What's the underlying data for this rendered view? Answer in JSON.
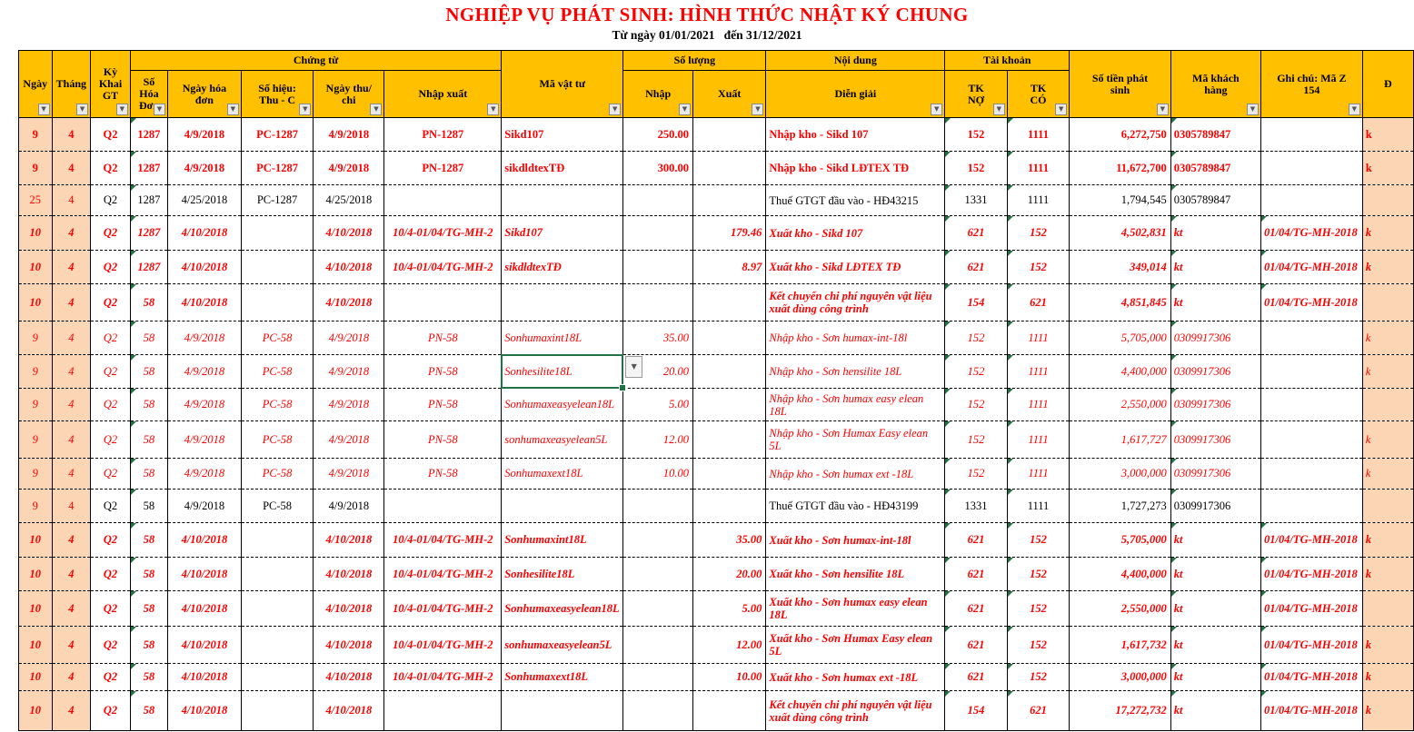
{
  "title": "NGHIỆP VỤ PHÁT SINH: HÌNH THỨC NHẬT KÝ CHUNG",
  "subtitle": "Từ ngày 01/01/2021   đến 31/12/2021",
  "icons": {
    "filter_dropdown": "▼",
    "validation_dropdown": "▼"
  },
  "colors": {
    "header_bg": "#FFC000",
    "stripe_bg": "#FCD5B4",
    "text_red": "#FF0000",
    "selection_green": "#217346"
  },
  "table": {
    "groups": {
      "chung_tu": "Chứng từ",
      "so_luong": "Số lượng",
      "noi_dung": "Nội dung",
      "tai_khoan": "Tài khoản"
    },
    "columns": {
      "ngay": "Ngày",
      "thang": "Tháng",
      "ky": "Kỳ\nKhai\nGT",
      "so_hd": "Số\nHóa\nĐơn",
      "ngay_hd": "Ngày hóa\nđơn",
      "so_hieu": "Số hiệu:\nThu - C",
      "ngay_tc": "Ngày thu/\nchi",
      "nhap_xuat": "Nhập xuất",
      "ma_vt": "Mã vật tư",
      "nhap": "Nhập",
      "xuat": "Xuất",
      "dien_giai": "Diễn giải",
      "tk_no": "TK\nNỢ",
      "tk_co": "TK\nCÓ",
      "so_tien": "Số tiền phát\nsinh",
      "ma_kh": "Mã khách\nhàng",
      "ghi_chu": "Ghi chú:  Mã Z\n154",
      "d": "Đ"
    },
    "rows": [
      {
        "style": "br",
        "ngay": "9",
        "thang": "4",
        "ky": "Q2",
        "so_hd": "1287",
        "ngay_hd": "4/9/2018",
        "so_hieu": "PC-1287",
        "ngay_tc": "4/9/2018",
        "nhap_xuat": "PN-1287",
        "ma_vt": "Sikd107",
        "nhap": "250.00",
        "dien_giai": "Nhập kho - Sikd 107",
        "tk_no": "152",
        "tk_co": "1111",
        "so_tien": "6,272,750",
        "ma_kh": "0305789847",
        "d": "k"
      },
      {
        "style": "br",
        "ngay": "9",
        "thang": "4",
        "ky": "Q2",
        "so_hd": "1287",
        "ngay_hd": "4/9/2018",
        "so_hieu": "PC-1287",
        "ngay_tc": "4/9/2018",
        "nhap_xuat": "PN-1287",
        "ma_vt": "sikdldtexTĐ",
        "nhap": "300.00",
        "dien_giai": "Nhập kho - Sikd LĐTEX TĐ",
        "tk_no": "152",
        "tk_co": "1111",
        "so_tien": "11,672,700",
        "ma_kh": "0305789847",
        "d": "k"
      },
      {
        "style": "k",
        "ngay": "25",
        "thang": "4",
        "ky": "Q2",
        "so_hd": "1287",
        "ngay_hd": "4/25/2018",
        "so_hieu": "PC-1287",
        "ngay_tc": "4/25/2018",
        "dien_giai": "Thuế GTGT đầu vào - HĐ43215",
        "tk_no": "1331",
        "tk_co": "1111",
        "so_tien": "1,794,545",
        "ma_kh": "0305789847"
      },
      {
        "style": "bri",
        "ngay": "10",
        "thang": "4",
        "ky": "Q2",
        "so_hd": "1287",
        "ngay_hd": "4/10/2018",
        "ngay_tc": "4/10/2018",
        "nhap_xuat": "10/4-01/04/TG-MH-2",
        "ma_vt": "Sikd107",
        "xuat": "179.46",
        "dien_giai": "Xuất kho - Sikd 107",
        "tk_no": "621",
        "tk_co": "152",
        "so_tien": "4,502,831",
        "ma_kh": "kt",
        "ghi_chu": "01/04/TG-MH-2018",
        "d": "k"
      },
      {
        "style": "bri",
        "ngay": "10",
        "thang": "4",
        "ky": "Q2",
        "so_hd": "1287",
        "ngay_hd": "4/10/2018",
        "ngay_tc": "4/10/2018",
        "nhap_xuat": "10/4-01/04/TG-MH-2",
        "ma_vt": "sikdldtexTĐ",
        "xuat": "8.97",
        "dien_giai": "Xuất kho - Sikd LĐTEX TĐ",
        "tk_no": "621",
        "tk_co": "152",
        "so_tien": "349,014",
        "ma_kh": "kt",
        "ghi_chu": "01/04/TG-MH-2018",
        "d": "k"
      },
      {
        "style": "bri",
        "ngay": "10",
        "thang": "4",
        "ky": "Q2",
        "so_hd": "58",
        "ngay_hd": "4/10/2018",
        "ngay_tc": "4/10/2018",
        "dien_giai": "Kết chuyển chi phí nguyên vật liệu xuất dùng công trình",
        "tk_no": "154",
        "tk_co": "621",
        "so_tien": "4,851,845",
        "ma_kh": "kt",
        "ghi_chu": "01/04/TG-MH-2018"
      },
      {
        "style": "ri",
        "ngay": "9",
        "thang": "4",
        "ky": "Q2",
        "so_hd": "58",
        "ngay_hd": "4/9/2018",
        "so_hieu": "PC-58",
        "ngay_tc": "4/9/2018",
        "nhap_xuat": "PN-58",
        "ma_vt": "Sonhumaxint18L",
        "nhap": "35.00",
        "dien_giai": "Nhập kho - Sơn humax-int-18l",
        "tk_no": "152",
        "tk_co": "1111",
        "so_tien": "5,705,000",
        "ma_kh": "0309917306",
        "d": "k"
      },
      {
        "style": "ri",
        "active_cell": "ma_vt",
        "ngay": "9",
        "thang": "4",
        "ky": "Q2",
        "so_hd": "58",
        "ngay_hd": "4/9/2018",
        "so_hieu": "PC-58",
        "ngay_tc": "4/9/2018",
        "nhap_xuat": "PN-58",
        "ma_vt": "Sonhesilite18L",
        "nhap": "20.00",
        "dien_giai": "Nhập kho - Sơn hensilite 18L",
        "tk_no": "152",
        "tk_co": "1111",
        "so_tien": "4,400,000",
        "ma_kh": "0309917306",
        "d": "k"
      },
      {
        "style": "ri",
        "ngay": "9",
        "thang": "4",
        "ky": "Q2",
        "so_hd": "58",
        "ngay_hd": "4/9/2018",
        "so_hieu": "PC-58",
        "ngay_tc": "4/9/2018",
        "nhap_xuat": "PN-58",
        "ma_vt": "Sonhumaxeasyelean18L",
        "nhap": "5.00",
        "dien_giai": "Nhập kho - Sơn humax easy elean 18L",
        "tk_no": "152",
        "tk_co": "1111",
        "so_tien": "2,550,000",
        "ma_kh": "0309917306"
      },
      {
        "style": "ri",
        "ngay": "9",
        "thang": "4",
        "ky": "Q2",
        "so_hd": "58",
        "ngay_hd": "4/9/2018",
        "so_hieu": "PC-58",
        "ngay_tc": "4/9/2018",
        "nhap_xuat": "PN-58",
        "ma_vt": "sonhumaxeasyelean5L",
        "nhap": "12.00",
        "dien_giai": "Nhập kho - Sơn Humax Easy elean 5L",
        "tk_no": "152",
        "tk_co": "1111",
        "so_tien": "1,617,727",
        "ma_kh": "0309917306",
        "d": "k"
      },
      {
        "style": "ri",
        "ngay": "9",
        "thang": "4",
        "ky": "Q2",
        "so_hd": "58",
        "ngay_hd": "4/9/2018",
        "so_hieu": "PC-58",
        "ngay_tc": "4/9/2018",
        "nhap_xuat": "PN-58",
        "ma_vt": "Sonhumaxext18L",
        "nhap": "10.00",
        "dien_giai": "Nhập kho - Sơn humax ext -18L",
        "tk_no": "152",
        "tk_co": "1111",
        "so_tien": "3,000,000",
        "ma_kh": "0309917306",
        "d": "k"
      },
      {
        "style": "k",
        "ngay": "9",
        "thang": "4",
        "ky": "Q2",
        "so_hd": "58",
        "ngay_hd": "4/9/2018",
        "so_hieu": "PC-58",
        "ngay_tc": "4/9/2018",
        "dien_giai": "Thuế GTGT đầu vào - HĐ43199",
        "tk_no": "1331",
        "tk_co": "1111",
        "so_tien": "1,727,273",
        "ma_kh": "0309917306"
      },
      {
        "style": "bri",
        "ngay": "10",
        "thang": "4",
        "ky": "Q2",
        "so_hd": "58",
        "ngay_hd": "4/10/2018",
        "ngay_tc": "4/10/2018",
        "nhap_xuat": "10/4-01/04/TG-MH-2",
        "ma_vt": "Sonhumaxint18L",
        "xuat": "35.00",
        "dien_giai": "Xuất kho - Sơn humax-int-18l",
        "tk_no": "621",
        "tk_co": "152",
        "so_tien": "5,705,000",
        "ma_kh": "kt",
        "ghi_chu": "01/04/TG-MH-2018",
        "d": "k"
      },
      {
        "style": "bri",
        "ngay": "10",
        "thang": "4",
        "ky": "Q2",
        "so_hd": "58",
        "ngay_hd": "4/10/2018",
        "ngay_tc": "4/10/2018",
        "nhap_xuat": "10/4-01/04/TG-MH-2",
        "ma_vt": "Sonhesilite18L",
        "xuat": "20.00",
        "dien_giai": "Xuất kho - Sơn hensilite 18L",
        "tk_no": "621",
        "tk_co": "152",
        "so_tien": "4,400,000",
        "ma_kh": "kt",
        "ghi_chu": "01/04/TG-MH-2018",
        "d": "k"
      },
      {
        "style": "bri",
        "ngay": "10",
        "thang": "4",
        "ky": "Q2",
        "so_hd": "58",
        "ngay_hd": "4/10/2018",
        "ngay_tc": "4/10/2018",
        "nhap_xuat": "10/4-01/04/TG-MH-2",
        "ma_vt": "Sonhumaxeasyelean18L",
        "xuat": "5.00",
        "dien_giai": "Xuất kho - Sơn humax easy elean 18L",
        "tk_no": "621",
        "tk_co": "152",
        "so_tien": "2,550,000",
        "ma_kh": "kt",
        "ghi_chu": "01/04/TG-MH-2018"
      },
      {
        "style": "bri",
        "ngay": "10",
        "thang": "4",
        "ky": "Q2",
        "so_hd": "58",
        "ngay_hd": "4/10/2018",
        "ngay_tc": "4/10/2018",
        "nhap_xuat": "10/4-01/04/TG-MH-2",
        "ma_vt": "sonhumaxeasyelean5L",
        "xuat": "12.00",
        "dien_giai": "Xuất kho - Sơn Humax Easy elean 5L",
        "tk_no": "621",
        "tk_co": "152",
        "so_tien": "1,617,732",
        "ma_kh": "kt",
        "ghi_chu": "01/04/TG-MH-2018",
        "d": "k"
      },
      {
        "style": "bri",
        "ngay": "10",
        "thang": "4",
        "ky": "Q2",
        "so_hd": "58",
        "ngay_hd": "4/10/2018",
        "ngay_tc": "4/10/2018",
        "nhap_xuat": "10/4-01/04/TG-MH-2",
        "ma_vt": "Sonhumaxext18L",
        "xuat": "10.00",
        "dien_giai": "Xuất kho - Sơn humax ext -18L",
        "tk_no": "621",
        "tk_co": "152",
        "so_tien": "3,000,000",
        "ma_kh": "kt",
        "ghi_chu": "01/04/TG-MH-2018",
        "d": "k"
      },
      {
        "style": "bri",
        "ngay": "10",
        "thang": "4",
        "ky": "Q2",
        "so_hd": "58",
        "ngay_hd": "4/10/2018",
        "ngay_tc": "4/10/2018",
        "dien_giai": "Kết chuyển chi phí nguyên vật liệu xuất dùng công trình",
        "tk_no": "154",
        "tk_co": "621",
        "so_tien": "17,272,732",
        "ma_kh": "kt",
        "ghi_chu": "01/04/TG-MH-2018",
        "d": "k"
      }
    ]
  }
}
